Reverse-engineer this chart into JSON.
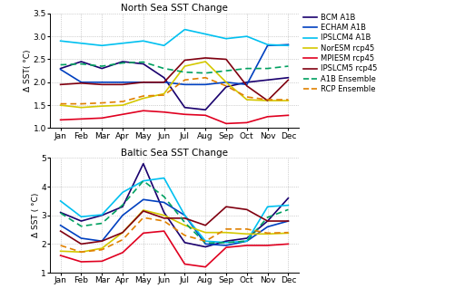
{
  "months": [
    "Jan",
    "Feb",
    "Mar",
    "Apr",
    "May",
    "Jun",
    "Jul",
    "Aug",
    "Sep",
    "Oct",
    "Nov",
    "Dec"
  ],
  "north_sea": {
    "BCM_A1B": [
      2.3,
      2.45,
      2.3,
      2.45,
      2.4,
      2.1,
      1.45,
      1.4,
      1.9,
      2.0,
      2.05,
      2.1
    ],
    "ECHAM_A1B": [
      2.28,
      2.0,
      2.0,
      2.0,
      2.0,
      2.0,
      1.95,
      1.95,
      2.0,
      1.95,
      2.8,
      2.82
    ],
    "IPSLCM4_A1B": [
      2.9,
      2.85,
      2.8,
      2.85,
      2.9,
      2.8,
      3.15,
      3.05,
      2.95,
      3.0,
      2.82,
      2.8
    ],
    "NorESM_rcp45": [
      1.5,
      1.45,
      1.48,
      1.5,
      1.65,
      1.75,
      2.35,
      2.45,
      2.0,
      1.62,
      1.6,
      1.6
    ],
    "MPIESM_rcp45": [
      1.18,
      1.2,
      1.22,
      1.3,
      1.38,
      1.35,
      1.3,
      1.28,
      1.1,
      1.12,
      1.25,
      1.28
    ],
    "IPSLCM5_rcp45": [
      1.95,
      1.98,
      1.95,
      1.95,
      2.0,
      2.0,
      2.48,
      2.53,
      2.5,
      1.92,
      1.6,
      2.05
    ],
    "A1B_Ensemble": [
      2.38,
      2.4,
      2.35,
      2.42,
      2.44,
      2.3,
      2.22,
      2.2,
      2.25,
      2.3,
      2.3,
      2.35
    ],
    "RCP_Ensemble": [
      1.53,
      1.53,
      1.55,
      1.58,
      1.7,
      1.72,
      2.05,
      2.1,
      1.92,
      1.68,
      1.62,
      1.62
    ]
  },
  "baltic_sea": {
    "BCM_A1B": [
      3.1,
      2.8,
      3.0,
      3.3,
      4.8,
      3.1,
      2.05,
      1.9,
      2.1,
      2.2,
      2.8,
      3.6
    ],
    "ECHAM_A1B": [
      2.65,
      2.2,
      2.1,
      3.0,
      3.55,
      3.45,
      3.0,
      2.0,
      1.95,
      2.1,
      2.6,
      2.8
    ],
    "IPSLCM4_A1B": [
      3.5,
      2.95,
      3.02,
      3.8,
      4.2,
      4.3,
      3.0,
      2.1,
      2.05,
      2.1,
      3.3,
      3.35
    ],
    "NorESM_rcp45": [
      1.75,
      1.72,
      1.85,
      2.4,
      3.18,
      3.0,
      2.65,
      2.4,
      2.4,
      2.35,
      2.35,
      2.38
    ],
    "MPIESM_rcp45": [
      1.6,
      1.38,
      1.4,
      1.7,
      2.38,
      2.45,
      1.3,
      1.2,
      1.88,
      1.95,
      1.95,
      2.0
    ],
    "IPSLCM5_rcp45": [
      2.45,
      2.0,
      2.1,
      2.4,
      3.15,
      2.9,
      2.9,
      2.65,
      3.3,
      3.2,
      2.8,
      2.8
    ],
    "A1B_Ensemble": [
      3.08,
      2.62,
      2.72,
      3.36,
      4.2,
      3.65,
      2.75,
      2.03,
      2.05,
      2.1,
      2.93,
      3.2
    ],
    "RCP_Ensemble": [
      1.95,
      1.72,
      1.8,
      2.15,
      2.92,
      2.8,
      2.3,
      2.1,
      2.52,
      2.52,
      2.38,
      2.4
    ]
  },
  "colors": {
    "BCM_A1B": "#1a006e",
    "ECHAM_A1B": "#0040c0",
    "IPSLCM4_A1B": "#00c0f0",
    "NorESM_rcp45": "#d4c800",
    "MPIESM_rcp45": "#e00020",
    "IPSLCM5_rcp45": "#800010",
    "A1B_Ensemble": "#00a060",
    "RCP_Ensemble": "#e08000"
  },
  "north_ylim": [
    1.0,
    3.5
  ],
  "north_yticks": [
    1.0,
    1.5,
    2.0,
    2.5,
    3.0,
    3.5
  ],
  "baltic_ylim": [
    1.0,
    5.0
  ],
  "baltic_yticks": [
    1,
    2,
    3,
    4,
    5
  ],
  "legend_labels": [
    "BCM A1B",
    "ECHAM A1B",
    "IPSLCM4 A1B",
    "NorESM rcp45",
    "MPIESM rcp45",
    "IPSLCM5 rcp45",
    "A1B Ensemble",
    "RCP Ensemble"
  ],
  "legend_keys": [
    "BCM_A1B",
    "ECHAM_A1B",
    "IPSLCM4_A1B",
    "NorESM_rcp45",
    "MPIESM_rcp45",
    "IPSLCM5_rcp45",
    "A1B_Ensemble",
    "RCP_Ensemble"
  ],
  "legend_styles": [
    "solid",
    "solid",
    "solid",
    "solid",
    "solid",
    "solid",
    "dashed",
    "dashed"
  ]
}
